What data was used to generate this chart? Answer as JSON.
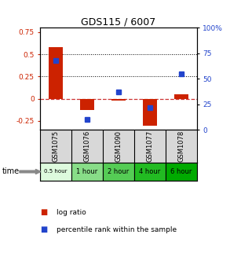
{
  "title": "GDS115 / 6007",
  "samples": [
    "GSM1075",
    "GSM1076",
    "GSM1090",
    "GSM1077",
    "GSM1078"
  ],
  "time_labels": [
    "0.5 hour",
    "1 hour",
    "2 hour",
    "4 hour",
    "6 hour"
  ],
  "time_colors": [
    "#ddfadd",
    "#88dd88",
    "#55cc55",
    "#22bb22",
    "#00aa00"
  ],
  "log_ratios": [
    0.58,
    -0.13,
    -0.02,
    -0.3,
    0.05
  ],
  "percentile_ranks": [
    68,
    10,
    37,
    22,
    55
  ],
  "bar_color": "#cc2200",
  "dot_color": "#2244cc",
  "ylim_left": [
    -0.35,
    0.8
  ],
  "ylim_right": [
    0,
    100
  ],
  "yticks_left": [
    -0.25,
    0,
    0.25,
    0.5,
    0.75
  ],
  "yticks_right": [
    0,
    25,
    50,
    75,
    100
  ],
  "bg_color": "#d8d8d8",
  "plot_bg": "white"
}
